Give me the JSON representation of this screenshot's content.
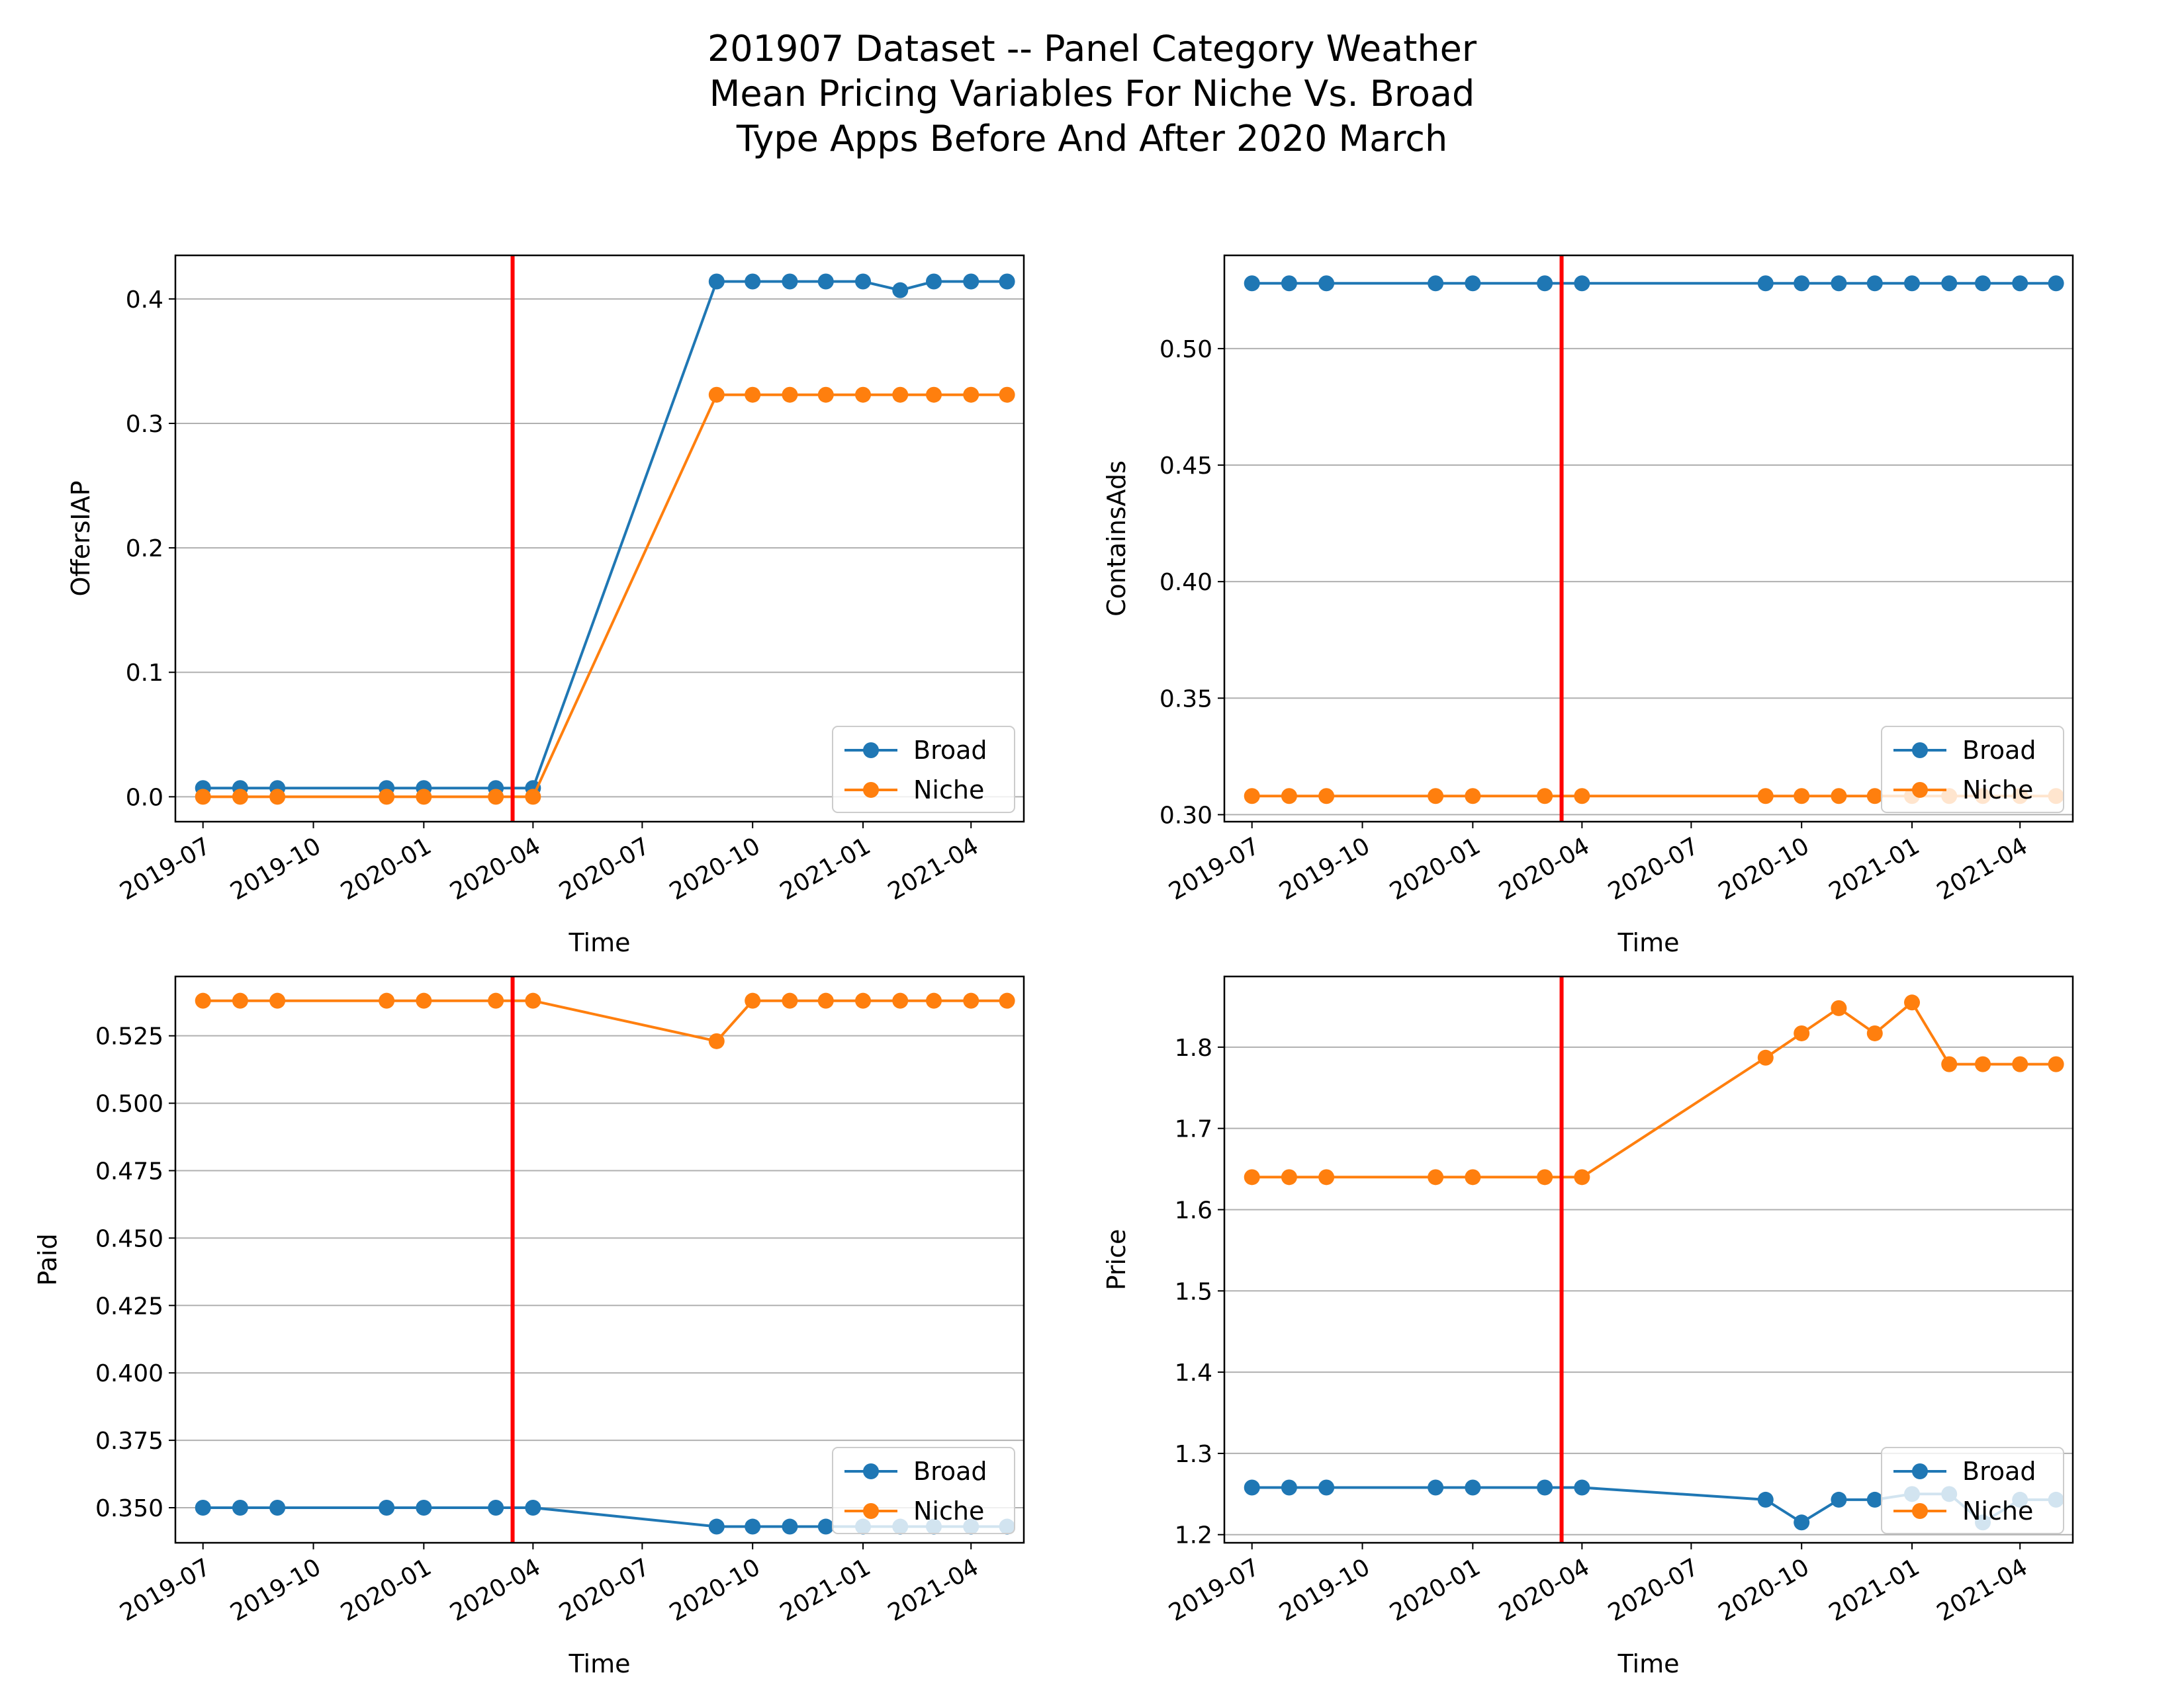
{
  "figure": {
    "title_lines": [
      "201907 Dataset -- Panel Category Weather",
      "Mean Pricing Variables For Niche Vs. Broad",
      "Type Apps Before And After 2020 March"
    ]
  },
  "colors": {
    "broad": "#1f77b4",
    "niche": "#ff7f0e",
    "vline": "#ff0000",
    "grid": "#b0b0b0"
  },
  "chart_data": [
    {
      "type": "line",
      "xlabel": "Time",
      "ylabel": "OffersIAP",
      "ylim": [
        -0.02,
        0.435
      ],
      "yticks": [
        0.0,
        0.1,
        0.2,
        0.3,
        0.4
      ],
      "ytick_labels": [
        "0.0",
        "0.1",
        "0.2",
        "0.3",
        "0.4"
      ],
      "xlim": [
        "2019-06-08",
        "2021-05-15"
      ],
      "xticks": [
        "2019-07-01",
        "2019-10-01",
        "2020-01-01",
        "2020-04-01",
        "2020-07-01",
        "2020-10-01",
        "2021-01-01",
        "2021-04-01"
      ],
      "xtick_labels": [
        "2019-07",
        "2019-10",
        "2020-01",
        "2020-04",
        "2020-07",
        "2020-10",
        "2021-01",
        "2021-04"
      ],
      "vline": "2020-03-15",
      "grid": "y",
      "legend": "lower-right",
      "series": [
        {
          "name": "Broad",
          "x": [
            "2019-07-01",
            "2019-08-01",
            "2019-09-01",
            "2019-12-01",
            "2020-01-01",
            "2020-03-01",
            "2020-04-01",
            "2020-09-01",
            "2020-10-01",
            "2020-11-01",
            "2020-12-01",
            "2021-01-01",
            "2021-02-01",
            "2021-03-01",
            "2021-04-01",
            "2021-05-01"
          ],
          "values": [
            0.007,
            0.007,
            0.007,
            0.007,
            0.007,
            0.007,
            0.007,
            0.414,
            0.414,
            0.414,
            0.414,
            0.414,
            0.407,
            0.414,
            0.414,
            0.414
          ]
        },
        {
          "name": "Niche",
          "x": [
            "2019-07-01",
            "2019-08-01",
            "2019-09-01",
            "2019-12-01",
            "2020-01-01",
            "2020-03-01",
            "2020-04-01",
            "2020-09-01",
            "2020-10-01",
            "2020-11-01",
            "2020-12-01",
            "2021-01-01",
            "2021-02-01",
            "2021-03-01",
            "2021-04-01",
            "2021-05-01"
          ],
          "values": [
            0.0,
            0.0,
            0.0,
            0.0,
            0.0,
            0.0,
            0.0,
            0.323,
            0.323,
            0.323,
            0.323,
            0.323,
            0.323,
            0.323,
            0.323,
            0.323
          ]
        }
      ]
    },
    {
      "type": "line",
      "xlabel": "Time",
      "ylabel": "ContainsAds",
      "ylim": [
        0.297,
        0.54
      ],
      "yticks": [
        0.3,
        0.35,
        0.4,
        0.45,
        0.5
      ],
      "ytick_labels": [
        "0.30",
        "0.35",
        "0.40",
        "0.45",
        "0.50"
      ],
      "xlim": [
        "2019-06-08",
        "2021-05-15"
      ],
      "xticks": [
        "2019-07-01",
        "2019-10-01",
        "2020-01-01",
        "2020-04-01",
        "2020-07-01",
        "2020-10-01",
        "2021-01-01",
        "2021-04-01"
      ],
      "xtick_labels": [
        "2019-07",
        "2019-10",
        "2020-01",
        "2020-04",
        "2020-07",
        "2020-10",
        "2021-01",
        "2021-04"
      ],
      "vline": "2020-03-15",
      "grid": "y",
      "legend": "lower-right",
      "series": [
        {
          "name": "Broad",
          "x": [
            "2019-07-01",
            "2019-08-01",
            "2019-09-01",
            "2019-12-01",
            "2020-01-01",
            "2020-03-01",
            "2020-04-01",
            "2020-09-01",
            "2020-10-01",
            "2020-11-01",
            "2020-12-01",
            "2021-01-01",
            "2021-02-01",
            "2021-03-01",
            "2021-04-01",
            "2021-05-01"
          ],
          "values": [
            0.528,
            0.528,
            0.528,
            0.528,
            0.528,
            0.528,
            0.528,
            0.528,
            0.528,
            0.528,
            0.528,
            0.528,
            0.528,
            0.528,
            0.528,
            0.528
          ]
        },
        {
          "name": "Niche",
          "x": [
            "2019-07-01",
            "2019-08-01",
            "2019-09-01",
            "2019-12-01",
            "2020-01-01",
            "2020-03-01",
            "2020-04-01",
            "2020-09-01",
            "2020-10-01",
            "2020-11-01",
            "2020-12-01",
            "2021-01-01",
            "2021-02-01",
            "2021-03-01",
            "2021-04-01",
            "2021-05-01"
          ],
          "values": [
            0.308,
            0.308,
            0.308,
            0.308,
            0.308,
            0.308,
            0.308,
            0.308,
            0.308,
            0.308,
            0.308,
            0.308,
            0.308,
            0.308,
            0.308,
            0.308
          ]
        }
      ]
    },
    {
      "type": "line",
      "xlabel": "Time",
      "ylabel": "Paid",
      "ylim": [
        0.337,
        0.547
      ],
      "yticks": [
        0.35,
        0.375,
        0.4,
        0.425,
        0.45,
        0.475,
        0.5,
        0.525
      ],
      "ytick_labels": [
        "0.350",
        "0.375",
        "0.400",
        "0.425",
        "0.450",
        "0.475",
        "0.500",
        "0.525"
      ],
      "xlim": [
        "2019-06-08",
        "2021-05-15"
      ],
      "xticks": [
        "2019-07-01",
        "2019-10-01",
        "2020-01-01",
        "2020-04-01",
        "2020-07-01",
        "2020-10-01",
        "2021-01-01",
        "2021-04-01"
      ],
      "xtick_labels": [
        "2019-07",
        "2019-10",
        "2020-01",
        "2020-04",
        "2020-07",
        "2020-10",
        "2021-01",
        "2021-04"
      ],
      "vline": "2020-03-15",
      "grid": "y",
      "legend": "lower-right",
      "series": [
        {
          "name": "Broad",
          "x": [
            "2019-07-01",
            "2019-08-01",
            "2019-09-01",
            "2019-12-01",
            "2020-01-01",
            "2020-03-01",
            "2020-04-01",
            "2020-09-01",
            "2020-10-01",
            "2020-11-01",
            "2020-12-01",
            "2021-01-01",
            "2021-02-01",
            "2021-03-01",
            "2021-04-01",
            "2021-05-01"
          ],
          "values": [
            0.35,
            0.35,
            0.35,
            0.35,
            0.35,
            0.35,
            0.35,
            0.343,
            0.343,
            0.343,
            0.343,
            0.343,
            0.343,
            0.343,
            0.343,
            0.343
          ]
        },
        {
          "name": "Niche",
          "x": [
            "2019-07-01",
            "2019-08-01",
            "2019-09-01",
            "2019-12-01",
            "2020-01-01",
            "2020-03-01",
            "2020-04-01",
            "2020-09-01",
            "2020-10-01",
            "2020-11-01",
            "2020-12-01",
            "2021-01-01",
            "2021-02-01",
            "2021-03-01",
            "2021-04-01",
            "2021-05-01"
          ],
          "values": [
            0.538,
            0.538,
            0.538,
            0.538,
            0.538,
            0.538,
            0.538,
            0.523,
            0.538,
            0.538,
            0.538,
            0.538,
            0.538,
            0.538,
            0.538,
            0.538
          ]
        }
      ]
    },
    {
      "type": "line",
      "xlabel": "Time",
      "ylabel": "Price",
      "ylim": [
        1.19,
        1.887
      ],
      "yticks": [
        1.2,
        1.3,
        1.4,
        1.5,
        1.6,
        1.7,
        1.8
      ],
      "ytick_labels": [
        "1.2",
        "1.3",
        "1.4",
        "1.5",
        "1.6",
        "1.7",
        "1.8"
      ],
      "xlim": [
        "2019-06-08",
        "2021-05-15"
      ],
      "xticks": [
        "2019-07-01",
        "2019-10-01",
        "2020-01-01",
        "2020-04-01",
        "2020-07-01",
        "2020-10-01",
        "2021-01-01",
        "2021-04-01"
      ],
      "xtick_labels": [
        "2019-07",
        "2019-10",
        "2020-01",
        "2020-04",
        "2020-07",
        "2020-10",
        "2021-01",
        "2021-04"
      ],
      "vline": "2020-03-15",
      "grid": "y",
      "legend": "lower-right",
      "series": [
        {
          "name": "Broad",
          "x": [
            "2019-07-01",
            "2019-08-01",
            "2019-09-01",
            "2019-12-01",
            "2020-01-01",
            "2020-03-01",
            "2020-04-01",
            "2020-09-01",
            "2020-10-01",
            "2020-11-01",
            "2020-12-01",
            "2021-01-01",
            "2021-02-01",
            "2021-03-01",
            "2021-04-01",
            "2021-05-01"
          ],
          "values": [
            1.258,
            1.258,
            1.258,
            1.258,
            1.258,
            1.258,
            1.258,
            1.243,
            1.215,
            1.243,
            1.243,
            1.25,
            1.25,
            1.215,
            1.243,
            1.243
          ]
        },
        {
          "name": "Niche",
          "x": [
            "2019-07-01",
            "2019-08-01",
            "2019-09-01",
            "2019-12-01",
            "2020-01-01",
            "2020-03-01",
            "2020-04-01",
            "2020-09-01",
            "2020-10-01",
            "2020-11-01",
            "2020-12-01",
            "2021-01-01",
            "2021-02-01",
            "2021-03-01",
            "2021-04-01",
            "2021-05-01"
          ],
          "values": [
            1.64,
            1.64,
            1.64,
            1.64,
            1.64,
            1.64,
            1.64,
            1.787,
            1.817,
            1.848,
            1.817,
            1.855,
            1.779,
            1.779,
            1.779,
            1.779
          ]
        }
      ]
    }
  ]
}
